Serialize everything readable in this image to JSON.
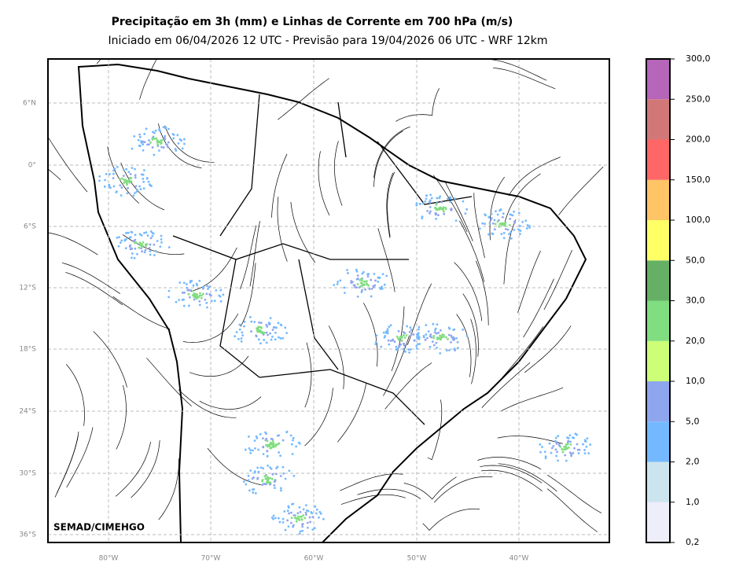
{
  "header": {
    "title": "Precipitação em 3h (mm) e Linhas de Corrente em 700 hPa (m/s)",
    "subtitle": "Iniciado em 06/04/2026 12 UTC - Previsão para 19/04/2026 06 UTC - WRF 12km"
  },
  "map": {
    "lat_labels": [
      "6°N",
      "0°",
      "6°S",
      "12°S",
      "18°S",
      "24°S",
      "30°S",
      "36°S"
    ],
    "lon_labels": [
      "80°W",
      "70°W",
      "60°W",
      "50°W",
      "40°W"
    ],
    "credit": "SEMAD/CIMEHGO"
  },
  "colorbar": {
    "labels": [
      "0,2",
      "1,0",
      "2,0",
      "5,0",
      "10,0",
      "20,0",
      "30,0",
      "50,0",
      "100,0",
      "150,0",
      "200,0",
      "250,0",
      "300,0"
    ],
    "colors": [
      "#eeeefa",
      "#cce4ee",
      "#74b9ff",
      "#8ea6ee",
      "#ccff77",
      "#80dd80",
      "#66b066",
      "#ffff66",
      "#ffc466",
      "#ff6666",
      "#d27777",
      "#b566b8"
    ]
  }
}
